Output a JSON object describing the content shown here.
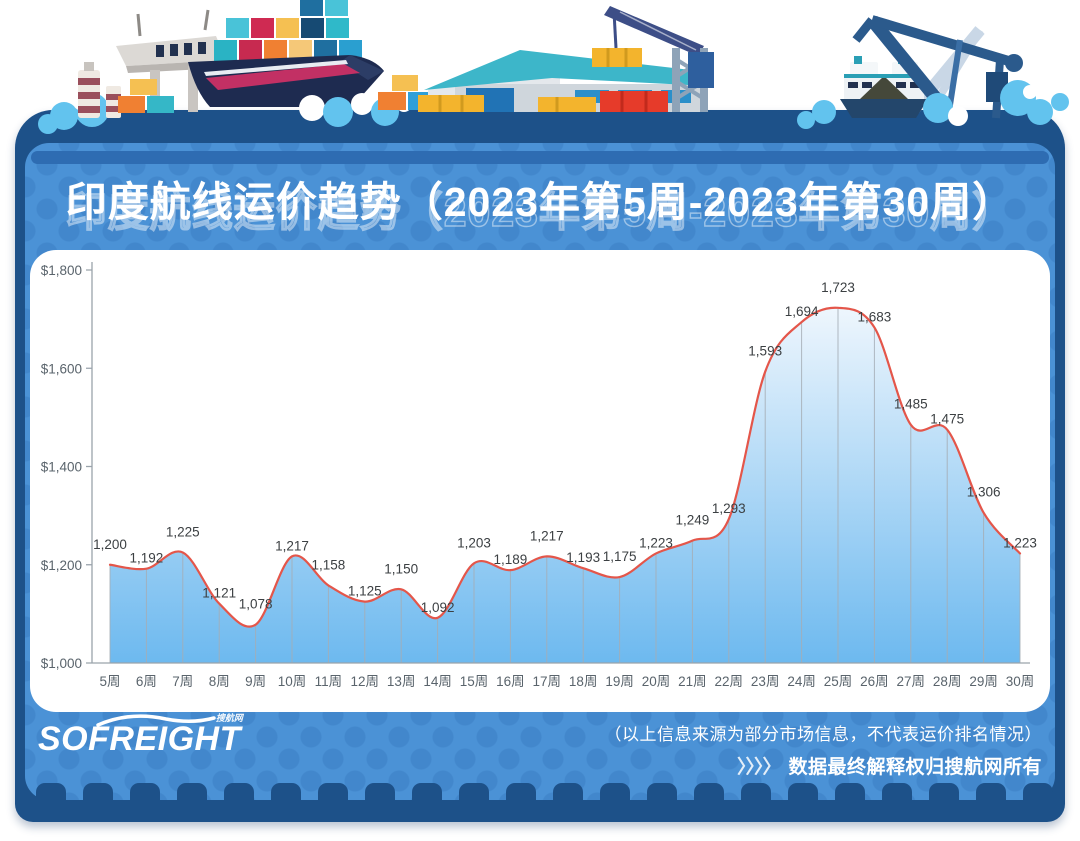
{
  "header": {
    "title": "印度航线运价趋势（2023年第5周-2023年第30周）"
  },
  "chart_data": {
    "type": "area",
    "title": "印度航线运价趋势（2023年第5周-2023年第30周）",
    "categories": [
      "5周",
      "6周",
      "7周",
      "8周",
      "9周",
      "10周",
      "11周",
      "12周",
      "13周",
      "14周",
      "15周",
      "16周",
      "17周",
      "18周",
      "19周",
      "20周",
      "21周",
      "22周",
      "23周",
      "24周",
      "25周",
      "26周",
      "27周",
      "28周",
      "29周",
      "30周"
    ],
    "values": [
      1200,
      1192,
      1225,
      1121,
      1078,
      1217,
      1158,
      1125,
      1150,
      1092,
      1203,
      1189,
      1217,
      1193,
      1175,
      1223,
      1249,
      1293,
      1593,
      1694,
      1723,
      1683,
      1485,
      1475,
      1306,
      1223
    ],
    "xlabel": "",
    "ylabel": "",
    "ylim": [
      1000,
      1800
    ],
    "ytick_step": 200,
    "y_axis_labels": [
      "$1,000",
      "$1,200",
      "$1,400",
      "$1,600",
      "$1,800"
    ],
    "ylabel_prefix": "$",
    "show_point_labels": true,
    "grid": "vertical-drop-lines",
    "legend": "none",
    "line_color": "#e4564a",
    "area_top_color": "#eef6fd",
    "area_bottom_color": "#6db9ef",
    "drop_line_color": "#a5adb5",
    "axis_color": "#9aa3ab",
    "tick_label_color": "#5a646c",
    "point_label_color": "#3c4043"
  },
  "footer": {
    "logo_text": "SOFREIGHT",
    "logo_sub": "搜航网",
    "disclaimer_line1": "（以上信息来源为部分市场信息，不代表运价排名情况）",
    "disclaimer_arrows": "〉〉〉〉",
    "disclaimer_line2": "数据最终解释权归搜航网所有"
  },
  "colors": {
    "outer_card": "#1d5189",
    "inner_panel": "#4b92d6",
    "top_stripe": "#2e6cb2",
    "chart_bg": "#ffffff",
    "splash_blue": "#62c3ee"
  }
}
